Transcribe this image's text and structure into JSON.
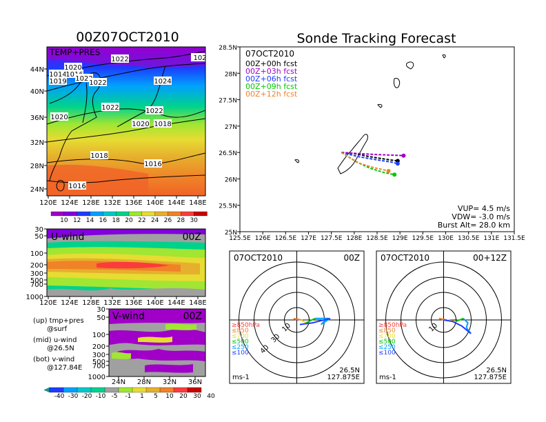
{
  "colors": {
    "field_scale": [
      "#a000c8",
      "#8200dc",
      "#1e3cff",
      "#00a0ff",
      "#00c8c8",
      "#00d28c",
      "#a0e632",
      "#e6dc32",
      "#e6af2d",
      "#f08228",
      "#fa3c3c",
      "#c80000"
    ],
    "wind_scale": [
      "#1e3cff",
      "#00a0ff",
      "#00c8c8",
      "#00d28c",
      "#a0a0a0",
      "#a0e632",
      "#e6dc32",
      "#e6af2d",
      "#f08228",
      "#fa3c3c"
    ],
    "track_00h": "#000000",
    "track_03h": "#a000c8",
    "track_06h": "#1e3cff",
    "track_09h": "#00c800",
    "track_12h": "#f08228"
  },
  "left_panel": {
    "title": "00Z07OCT2010",
    "map_label": "TEMP+PRES",
    "y_ticks": [
      "44N",
      "40N",
      "36N",
      "32N",
      "28N",
      "24N"
    ],
    "x_ticks": [
      "120E",
      "124E",
      "128E",
      "132E",
      "136E",
      "140E",
      "144E",
      "148E"
    ],
    "isobars": [
      "1022",
      "1020",
      "1014",
      "1016",
      "1019",
      "1022",
      "1022",
      "1024",
      "102",
      "1022",
      "1022",
      "1020",
      "1020",
      "1018",
      "1018",
      "1016",
      "1016"
    ],
    "colorbar": [
      "10",
      "12",
      "14",
      "16",
      "18",
      "20",
      "22",
      "24",
      "26",
      "28",
      "30"
    ]
  },
  "uwind_panel": {
    "label": "U-wind",
    "time": "00Z",
    "y_ticks": [
      "30",
      "50",
      "100",
      "200",
      "300",
      "500",
      "700",
      "1000"
    ],
    "x_ticks": [
      "120E",
      "124E",
      "128E",
      "132E",
      "136E",
      "140E",
      "144E",
      "148E"
    ]
  },
  "vwind_panel": {
    "label": "V-wind",
    "time": "00Z",
    "y_ticks": [
      "30",
      "50",
      "100",
      "200",
      "300",
      "500",
      "700",
      "1000"
    ],
    "x_ticks": [
      "24N",
      "28N",
      "32N",
      "36N"
    ],
    "colorbar": [
      "-40",
      "-30",
      "-20",
      "-10",
      "-5",
      "-1",
      "1",
      "5",
      "10",
      "20",
      "30",
      "40"
    ]
  },
  "notes": [
    {
      "a": "(up) tmp+pres",
      "b": "@surf"
    },
    {
      "a": "(mid) u-wind",
      "b": "@26.5N"
    },
    {
      "a": "(bot) v-wind",
      "b": "@127.84E"
    }
  ],
  "right_title": "Sonde Tracking Forecast",
  "track_panel": {
    "date": "07OCT2010",
    "legend": [
      "00Z+00h  fcst",
      "00Z+03h  fcst",
      "00Z+06h  fcst",
      "00Z+09h  fcst",
      "00Z+12h  fcst"
    ],
    "y_ticks": [
      "28.5N",
      "28N",
      "27.5N",
      "27N",
      "26.5N",
      "26N",
      "25.5N",
      "25N"
    ],
    "x_ticks": [
      "125.5E",
      "126E",
      "126.5E",
      "127E",
      "127.5E",
      "128E",
      "128.5E",
      "129E",
      "129.5E",
      "130E",
      "130.5E",
      "131E",
      "131.5E"
    ],
    "vup": "VUP=  4.5  m/s",
    "vdw": "VDW= -3.0  m/s",
    "burst": "Burst Alt=  28.0  km"
  },
  "chart_data": [
    {
      "type": "line",
      "title": "Sonde Tracking Forecast",
      "xlim": [
        125.5,
        131.5
      ],
      "ylim": [
        25,
        28.5
      ],
      "series": [
        {
          "name": "00Z+00h  fcst",
          "x": [
            127.72,
            128.0,
            128.35,
            128.7,
            128.95
          ],
          "y": [
            26.5,
            26.48,
            26.42,
            26.37,
            26.34
          ]
        },
        {
          "name": "00Z+03h  fcst",
          "x": [
            127.72,
            128.1,
            128.5,
            128.85,
            129.08
          ],
          "y": [
            26.5,
            26.48,
            26.46,
            26.45,
            26.44
          ]
        },
        {
          "name": "00Z+06h  fcst",
          "x": [
            127.72,
            128.1,
            128.5,
            128.8,
            128.95
          ],
          "y": [
            26.5,
            26.42,
            26.36,
            26.32,
            26.29
          ]
        },
        {
          "name": "00Z+09h  fcst",
          "x": [
            127.72,
            128.05,
            128.35,
            128.65,
            128.88
          ],
          "y": [
            26.5,
            26.32,
            26.2,
            26.12,
            26.08
          ]
        },
        {
          "name": "00Z+12h  fcst",
          "x": [
            127.72,
            128.1,
            128.4,
            128.75
          ],
          "y": [
            26.5,
            26.3,
            26.22,
            26.15
          ]
        }
      ]
    },
    {
      "type": "line",
      "title": "07OCT2010 00Z",
      "center": [
        "26.5N",
        "127.875E"
      ],
      "ring_labels": [
        "10",
        "30",
        "40"
      ],
      "unit": "ms-1",
      "levels": [
        "≥850hPa",
        "≤850",
        "≤700",
        "≤500",
        "≤250",
        "≤100"
      ],
      "series": [
        {
          "name": "≥850hPa",
          "u": [
            0,
            -2
          ],
          "v": [
            0,
            1
          ]
        },
        {
          "name": "≤850",
          "u": [
            -2,
            3
          ],
          "v": [
            1,
            0
          ]
        },
        {
          "name": "≤700",
          "u": [
            3,
            6
          ],
          "v": [
            0,
            -2
          ]
        },
        {
          "name": "≤500",
          "u": [
            6,
            12
          ],
          "v": [
            -2,
            1
          ]
        },
        {
          "name": "≤250",
          "u": [
            12,
            20,
            16,
            22
          ],
          "v": [
            1,
            1,
            -3,
            1
          ]
        },
        {
          "name": "≤100",
          "u": [
            22,
            10,
            2
          ],
          "v": [
            1,
            -2,
            -3
          ]
        }
      ]
    },
    {
      "type": "line",
      "title": "07OCT2010 00+12Z",
      "center": [
        "26.5N",
        "127.875E"
      ],
      "ring_labels": [
        "10"
      ],
      "unit": "ms-1",
      "levels": [
        "≥850hPa",
        "≤850",
        "≤700",
        "≤500",
        "≤250",
        "≤100"
      ],
      "series": [
        {
          "name": "≥850hPa",
          "u": [
            0,
            -3
          ],
          "v": [
            0,
            1
          ]
        },
        {
          "name": "≤850",
          "u": [
            -3,
            2
          ],
          "v": [
            1,
            0
          ]
        },
        {
          "name": "≤700",
          "u": [
            2,
            8
          ],
          "v": [
            0,
            -1
          ]
        },
        {
          "name": "≤500",
          "u": [
            8,
            13
          ],
          "v": [
            -1,
            1
          ]
        },
        {
          "name": "≤250",
          "u": [
            13,
            16,
            15,
            18
          ],
          "v": [
            1,
            -2,
            -5,
            -9
          ]
        },
        {
          "name": "≤100",
          "u": [
            18,
            12,
            6,
            0
          ],
          "v": [
            -9,
            -4,
            -1,
            0
          ]
        }
      ]
    }
  ]
}
